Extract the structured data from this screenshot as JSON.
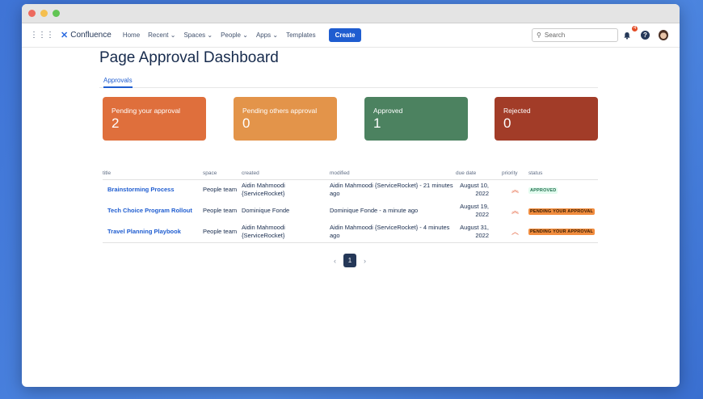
{
  "nav": {
    "app_name": "Confluence",
    "items": [
      "Home",
      "Recent",
      "Spaces",
      "People",
      "Apps",
      "Templates"
    ],
    "create_label": "Create",
    "search_placeholder": "Search",
    "notification_count": "4"
  },
  "page": {
    "title": "Page Approval Dashboard",
    "tab": "Approvals"
  },
  "cards": [
    {
      "label": "Pending your approval",
      "value": "2",
      "color": "#df6f3c"
    },
    {
      "label": "Pending others approval",
      "value": "0",
      "color": "#e3944a"
    },
    {
      "label": "Approved",
      "value": "1",
      "color": "#4c8260"
    },
    {
      "label": "Rejected",
      "value": "0",
      "color": "#a23c28"
    }
  ],
  "table": {
    "headers": [
      "title",
      "space",
      "created",
      "modified",
      "due date",
      "priority",
      "status"
    ],
    "rows": [
      {
        "title": "Brainstorming Process",
        "space": "People team",
        "created": "Aidin Mahmoodi {ServiceRocket}",
        "modified": "Aidin Mahmoodi {ServiceRocket} - 21 minutes ago",
        "due": "August 10, 2022",
        "priority": "highest",
        "status": "APPROVED"
      },
      {
        "title": "Tech Choice Program Rollout",
        "space": "People team",
        "created": "Dominique Fonde",
        "modified": "Dominique Fonde - a minute ago",
        "due": "August 19, 2022",
        "priority": "highest",
        "status": "PENDING YOUR APPROVAL"
      },
      {
        "title": "Travel Planning Playbook",
        "space": "People team",
        "created": "Aidin Mahmoodi {ServiceRocket}",
        "modified": "Aidin Mahmoodi {ServiceRocket} - 4 minutes ago",
        "due": "August 31, 2022",
        "priority": "high",
        "status": "PENDING YOUR APPROVAL"
      }
    ]
  },
  "pagination": {
    "current": "1"
  }
}
